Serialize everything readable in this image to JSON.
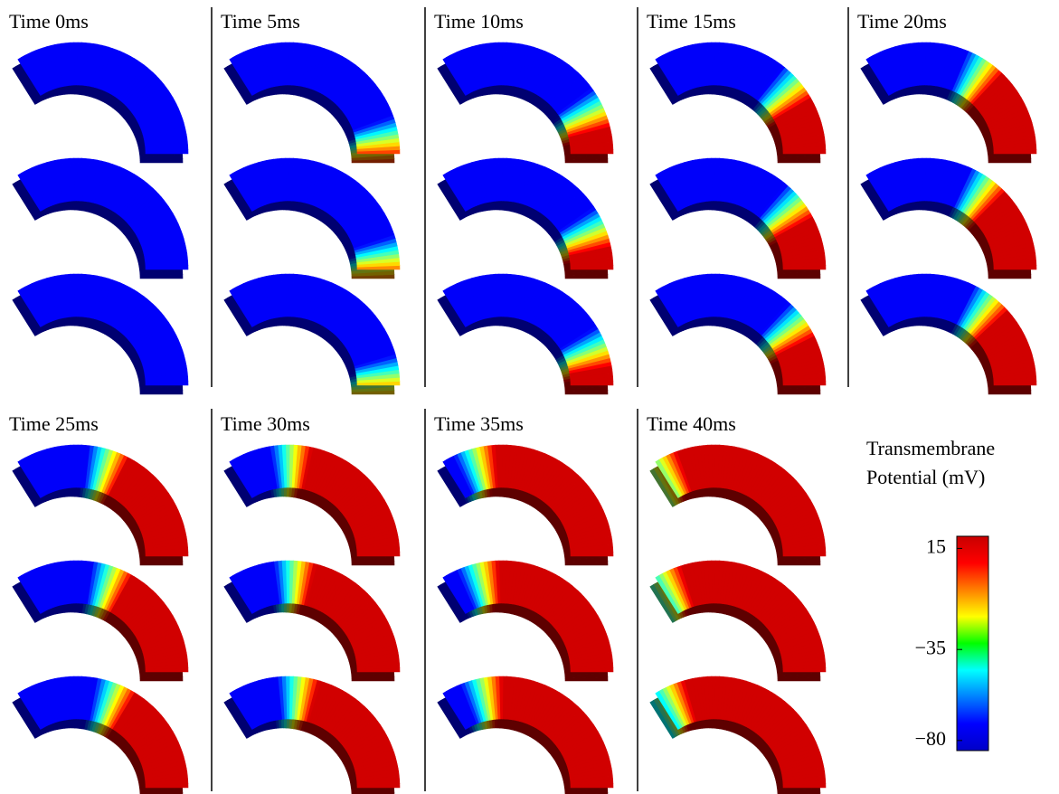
{
  "panels": [
    {
      "title": "Time 0ms"
    },
    {
      "title": "Time 5ms"
    },
    {
      "title": "Time 10ms"
    },
    {
      "title": "Time 15ms"
    },
    {
      "title": "Time 20ms"
    },
    {
      "title": "Time 25ms"
    },
    {
      "title": "Time 30ms"
    },
    {
      "title": "Time 35ms"
    },
    {
      "title": "Time 40ms"
    }
  ],
  "colorbar": {
    "title": [
      "Transmembrane",
      "Potential (mV)"
    ],
    "lim": [
      -85,
      21
    ],
    "ticks": [
      15,
      {
        "value": -35,
        "label": "−35"
      },
      {
        "value": -80,
        "label": "−80"
      }
    ]
  }
}
